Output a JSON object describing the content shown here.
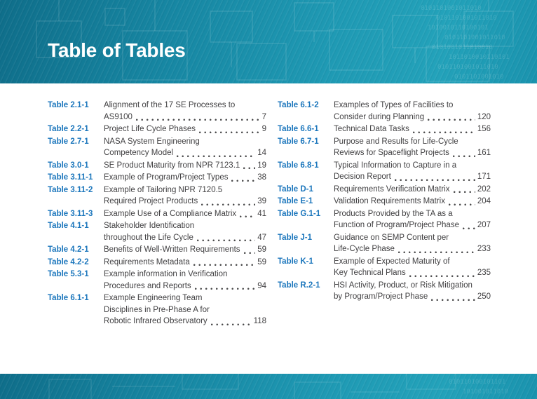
{
  "page": {
    "title": "Table of Tables"
  },
  "theme": {
    "banner_teal_dark": "#0F6E8A",
    "banner_teal_light": "#23A2BA",
    "label_blue": "#1B76BC",
    "body_text": "#414042",
    "background": "#FFFFFF",
    "binary_texture": "0101101001011010"
  },
  "columns": [
    {
      "entries": [
        {
          "label": "Table 2.1-1",
          "lines": [
            "Alignment of the 17 SE Processes to",
            "AS9100"
          ],
          "page": "7"
        },
        {
          "label": "Table 2.2-1",
          "lines": [
            "Project Life Cycle Phases"
          ],
          "page": "9"
        },
        {
          "label": "Table 2.7-1",
          "lines": [
            "NASA System Engineering",
            "Competency Model"
          ],
          "page": "14"
        },
        {
          "label": "Table 3.0-1",
          "lines": [
            "SE Product Maturity from NPR 7123.1"
          ],
          "page": "19"
        },
        {
          "label": "Table 3.11-1",
          "lines": [
            "Example of Program/Project Types"
          ],
          "page": "38"
        },
        {
          "label": "Table 3.11-2",
          "lines": [
            "Example of Tailoring NPR 7120.5",
            "Required Project Products"
          ],
          "page": "39"
        },
        {
          "label": "Table 3.11-3",
          "lines": [
            "Example Use of a Compliance Matrix"
          ],
          "page": "41"
        },
        {
          "label": "Table 4.1-1",
          "lines": [
            "Stakeholder Identification",
            "throughout the Life Cycle"
          ],
          "page": "47"
        },
        {
          "label": "Table 4.2-1",
          "lines": [
            "Benefits of Well-Written Requirements"
          ],
          "page": "59"
        },
        {
          "label": "Table 4.2-2",
          "lines": [
            "Requirements Metadata"
          ],
          "page": "59"
        },
        {
          "label": "Table 5.3-1",
          "lines": [
            "Example information in Verification",
            "Procedures and Reports"
          ],
          "page": "94"
        },
        {
          "label": "Table 6.1-1",
          "lines": [
            "Example Engineering Team",
            "Disciplines in Pre-Phase A for",
            "Robotic Infrared Observatory"
          ],
          "page": "118"
        }
      ]
    },
    {
      "entries": [
        {
          "label": "Table 6.1-2",
          "lines": [
            "Examples of Types of Facilities to",
            "Consider during Planning"
          ],
          "page": "120"
        },
        {
          "label": "Table 6.6-1",
          "lines": [
            "Technical Data Tasks"
          ],
          "page": "156"
        },
        {
          "label": "Table 6.7-1",
          "lines": [
            "Purpose and Results for Life-Cycle",
            "Reviews for Spaceflight Projects"
          ],
          "page": "161"
        },
        {
          "label": "Table 6.8-1",
          "lines": [
            "Typical Information to Capture in a",
            "Decision Report"
          ],
          "page": "171"
        },
        {
          "label": "Table D-1",
          "lines": [
            "Requirements Verification Matrix"
          ],
          "page": "202"
        },
        {
          "label": "Table E-1",
          "lines": [
            "Validation Requirements Matrix"
          ],
          "page": "204"
        },
        {
          "label": "Table G.1-1",
          "lines": [
            "Products Provided by the TA as a",
            "Function of Program/Project Phase"
          ],
          "page": "207"
        },
        {
          "label": "Table J-1",
          "lines": [
            "Guidance on SEMP Content per",
            "Life-Cycle Phase"
          ],
          "page": "233"
        },
        {
          "label": "Table K-1",
          "lines": [
            "Example of Expected Maturity of",
            "Key Technical Plans"
          ],
          "page": "235"
        },
        {
          "label": "Table R.2-1",
          "lines": [
            "HSI Activity, Product, or Risk Mitigation",
            "by Program/Project Phase"
          ],
          "page": "250"
        }
      ]
    }
  ]
}
